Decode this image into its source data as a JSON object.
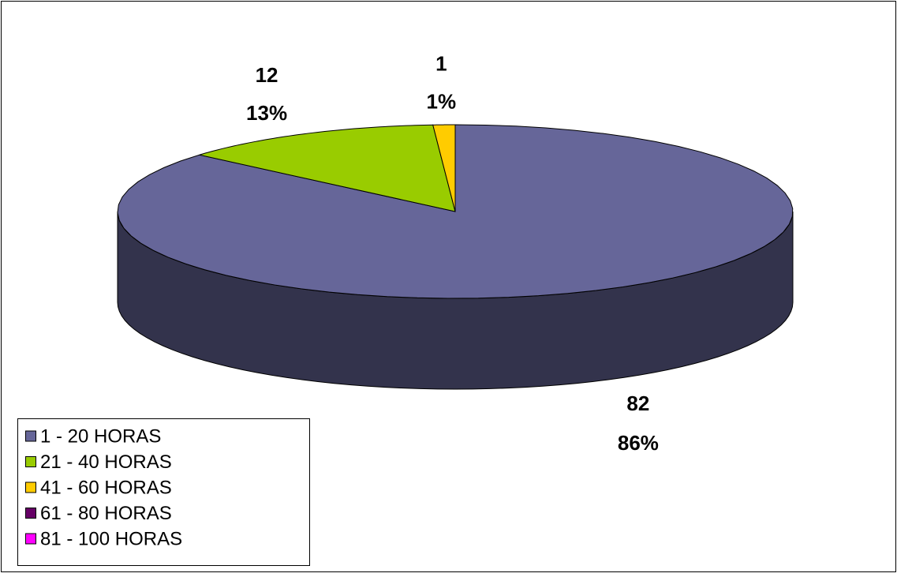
{
  "chart_data": {
    "type": "pie3d",
    "categories": [
      "1 - 20 HORAS",
      "21 - 40 HORAS",
      "41 - 60 HORAS",
      "61 - 80 HORAS",
      "81 - 100 HORAS"
    ],
    "values": [
      82,
      12,
      1,
      0,
      0
    ],
    "percent_labels": [
      "86%",
      "13%",
      "1%",
      null,
      null
    ],
    "colors": [
      "#666699",
      "#99cc00",
      "#ffcc00",
      "#660066",
      "#ff00ff"
    ],
    "legend": "bottom-left"
  }
}
